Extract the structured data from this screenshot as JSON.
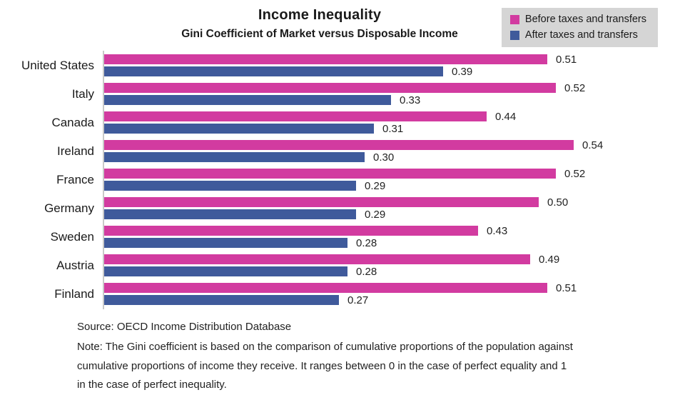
{
  "chart_data": {
    "type": "bar",
    "orientation": "horizontal",
    "title": "Income Inequality",
    "subtitle": "Gini Coefficient of Market versus Disposable Income",
    "categories": [
      "United States",
      "Italy",
      "Canada",
      "Ireland",
      "France",
      "Germany",
      "Sweden",
      "Austria",
      "Finland"
    ],
    "series": [
      {
        "name": "Before taxes and transfers",
        "color": "#d23ba0",
        "values": [
          0.51,
          0.52,
          0.44,
          0.54,
          0.52,
          0.5,
          0.43,
          0.49,
          0.51
        ]
      },
      {
        "name": "After taxes and transfers",
        "color": "#3f5a9b",
        "values": [
          0.39,
          0.33,
          0.31,
          0.3,
          0.29,
          0.29,
          0.28,
          0.28,
          0.27
        ]
      }
    ],
    "value_labels": true,
    "xlim": [
      0,
      0.62
    ],
    "grid": false,
    "legend_position": "top-right",
    "legend_background": "#d5d5d5",
    "axis_line_color": "#c9c9c9",
    "source": "Source: OECD Income Distribution Database",
    "note": "Note: The Gini coefficient is based on the comparison of cumulative proportions of the population against cumulative proportions of income they receive. It ranges between 0 in the case of perfect equality and 1 in the case of perfect inequality."
  }
}
